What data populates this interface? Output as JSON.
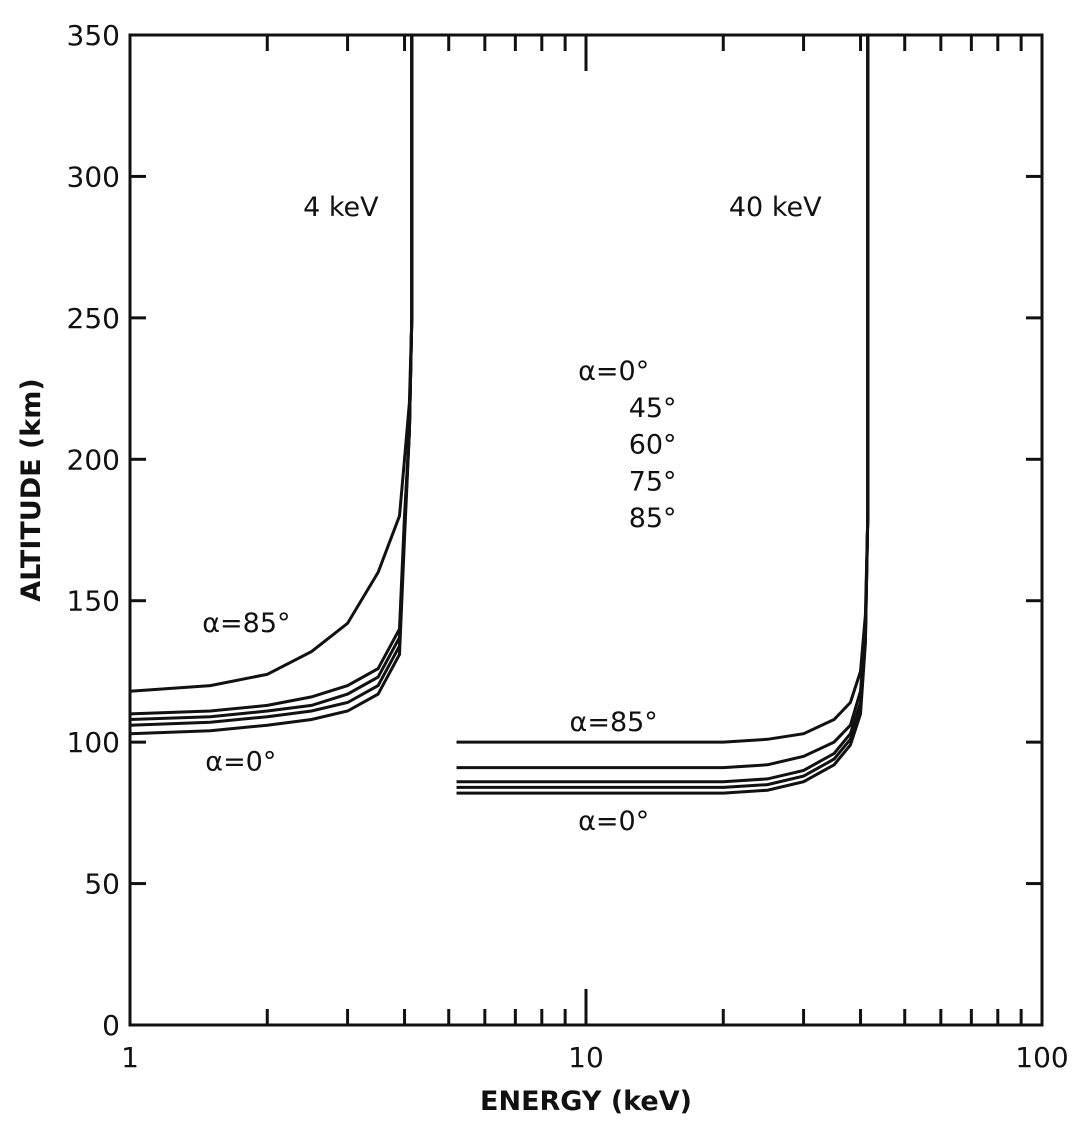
{
  "chart_data": {
    "type": "line",
    "title": "",
    "xlabel": "ENERGY (keV)",
    "ylabel": "ALTITUDE (km)",
    "xscale": "log",
    "xlim": [
      1,
      100
    ],
    "ylim": [
      0,
      350
    ],
    "x_tick_labels": [
      "1",
      "10",
      "100"
    ],
    "y_tick_labels": [
      "0",
      "50",
      "100",
      "150",
      "200",
      "250",
      "300",
      "350"
    ],
    "grid": false,
    "legend": "none",
    "series": [
      {
        "group": "4 keV",
        "points": [
          [
            1,
            118
          ],
          [
            1.5,
            120
          ],
          [
            2,
            124
          ],
          [
            2.5,
            132
          ],
          [
            3,
            142
          ],
          [
            3.5,
            160
          ],
          [
            3.9,
            180
          ],
          [
            4.0,
            200
          ],
          [
            4.1,
            220
          ],
          [
            4.15,
            250
          ],
          [
            4.15,
            350
          ]
        ]
      },
      {
        "group": "4 keV",
        "points": [
          [
            1,
            110
          ],
          [
            1.5,
            111
          ],
          [
            2,
            113
          ],
          [
            2.5,
            116
          ],
          [
            3,
            120
          ],
          [
            3.5,
            126
          ],
          [
            3.9,
            140
          ],
          [
            4.0,
            180
          ],
          [
            4.1,
            210
          ],
          [
            4.15,
            250
          ],
          [
            4.15,
            350
          ]
        ]
      },
      {
        "group": "4 keV",
        "points": [
          [
            1,
            108
          ],
          [
            1.5,
            109
          ],
          [
            2,
            111
          ],
          [
            2.5,
            113
          ],
          [
            3,
            117
          ],
          [
            3.5,
            123
          ],
          [
            3.9,
            137
          ],
          [
            4.0,
            178
          ],
          [
            4.1,
            210
          ],
          [
            4.15,
            250
          ],
          [
            4.15,
            350
          ]
        ]
      },
      {
        "group": "4 keV",
        "points": [
          [
            1,
            106
          ],
          [
            1.5,
            107
          ],
          [
            2,
            109
          ],
          [
            2.5,
            111
          ],
          [
            3,
            114
          ],
          [
            3.5,
            120
          ],
          [
            3.9,
            134
          ],
          [
            4.0,
            175
          ],
          [
            4.1,
            210
          ],
          [
            4.15,
            250
          ],
          [
            4.15,
            350
          ]
        ]
      },
      {
        "group": "4 keV",
        "points": [
          [
            1,
            103
          ],
          [
            1.5,
            104
          ],
          [
            2,
            106
          ],
          [
            2.5,
            108
          ],
          [
            3,
            111
          ],
          [
            3.5,
            117
          ],
          [
            3.9,
            131
          ],
          [
            4.0,
            172
          ],
          [
            4.1,
            210
          ],
          [
            4.15,
            250
          ],
          [
            4.15,
            350
          ]
        ]
      },
      {
        "group": "40 keV",
        "points": [
          [
            5.2,
            100
          ],
          [
            10,
            100
          ],
          [
            20,
            100
          ],
          [
            25,
            101
          ],
          [
            30,
            103
          ],
          [
            35,
            108
          ],
          [
            38,
            114
          ],
          [
            40,
            125
          ],
          [
            41,
            145
          ],
          [
            41.5,
            180
          ],
          [
            41.5,
            350
          ]
        ]
      },
      {
        "group": "40 keV",
        "points": [
          [
            5.2,
            91
          ],
          [
            10,
            91
          ],
          [
            20,
            91
          ],
          [
            25,
            92
          ],
          [
            30,
            95
          ],
          [
            35,
            100
          ],
          [
            38,
            106
          ],
          [
            40,
            118
          ],
          [
            41,
            140
          ],
          [
            41.5,
            180
          ],
          [
            41.5,
            350
          ]
        ]
      },
      {
        "group": "40 keV",
        "points": [
          [
            5.2,
            86
          ],
          [
            10,
            86
          ],
          [
            20,
            86
          ],
          [
            25,
            87
          ],
          [
            30,
            90
          ],
          [
            35,
            96
          ],
          [
            38,
            103
          ],
          [
            40,
            114
          ],
          [
            41,
            138
          ],
          [
            41.5,
            180
          ],
          [
            41.5,
            350
          ]
        ]
      },
      {
        "group": "40 keV",
        "points": [
          [
            5.2,
            84
          ],
          [
            10,
            84
          ],
          [
            20,
            84
          ],
          [
            25,
            85
          ],
          [
            30,
            88
          ],
          [
            35,
            94
          ],
          [
            38,
            101
          ],
          [
            40,
            112
          ],
          [
            41,
            136
          ],
          [
            41.5,
            180
          ],
          [
            41.5,
            350
          ]
        ]
      },
      {
        "group": "40 keV",
        "points": [
          [
            5.2,
            82
          ],
          [
            10,
            82
          ],
          [
            20,
            82
          ],
          [
            25,
            83
          ],
          [
            30,
            86
          ],
          [
            35,
            92
          ],
          [
            38,
            99
          ],
          [
            40,
            110
          ],
          [
            41,
            135
          ],
          [
            41.5,
            180
          ],
          [
            41.5,
            350
          ]
        ]
      }
    ],
    "annotations": [
      {
        "text": "4 keV",
        "x": 2.9,
        "y": 286
      },
      {
        "text": "40 keV",
        "x": 26,
        "y": 286
      },
      {
        "text": "α=0°",
        "x": 11.5,
        "y": 228
      },
      {
        "text": "45°",
        "x": 14,
        "y": 215
      },
      {
        "text": "60°",
        "x": 14,
        "y": 202
      },
      {
        "text": "75°",
        "x": 14,
        "y": 189
      },
      {
        "text": "85°",
        "x": 14,
        "y": 176
      },
      {
        "text": "α=85°",
        "x": 1.8,
        "y": 139
      },
      {
        "text": "α=0°",
        "x": 1.75,
        "y": 90
      },
      {
        "text": "α=85°",
        "x": 11.5,
        "y": 104
      },
      {
        "text": "α=0°",
        "x": 11.5,
        "y": 69
      }
    ]
  }
}
